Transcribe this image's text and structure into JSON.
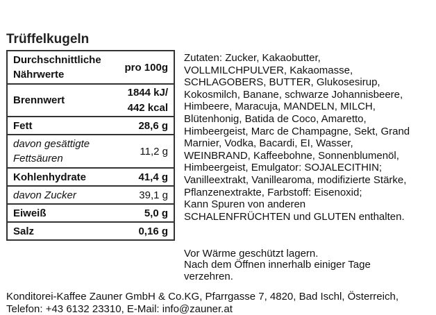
{
  "title": "Trüffelkugeln",
  "nutrition": {
    "header_label": "Durchschnittliche Nährwerte",
    "header_value": "pro 100g",
    "rows": [
      {
        "label": "Brennwert",
        "value": "1844 kJ/ 442 kcal",
        "style": "bold"
      },
      {
        "label": "Fett",
        "value": "28,6 g",
        "style": "bold"
      },
      {
        "label": "davon gesättigte Fettsäuren",
        "value": "11,2 g",
        "style": "italic"
      },
      {
        "label": "Kohlenhydrate",
        "value": "41,4 g",
        "style": "bold"
      },
      {
        "label": "davon Zucker",
        "value": "39,1 g",
        "style": "italic"
      },
      {
        "label": "Eiweiß",
        "value": "5,0 g",
        "style": "bold"
      },
      {
        "label": "Salz",
        "value": "0,16 g",
        "style": "bold"
      }
    ]
  },
  "ingredients": "Zutaten: Zucker, Kakaobutter,\nVOLLMILCHPULVER, Kakaomasse,\nSCHLAGOBERS, BUTTER, Glukosesirup,\nKokosmilch, Banane, schwarze Johannisbeere,\nHimbeere, Maracuja, MANDELN, MILCH,\nBlütenhonig, Batida de Coco, Amaretto,\nHimbeergeist, Marc de Champagne, Sekt, Grand\nMarnier, Vodka, Bacardi, EI, Wasser,\nWEINBRAND, Kaffeebohne, Sonnenblumenöl,\nHimbeergeist, Emulgator: SOJALECITHIN;\nVanilleextrakt, Vanillearoma, modifizierte Stärke,\nPflanzenextrakte, Farbstoff: Eisenoxid;\nKann Spuren von anderen\nSCHALENFRÜCHTEN und GLUTEN enthalten.",
  "storage": "Vor Wärme geschützt lagern.\nNach dem Öffnen innerhalb einiger Tage\nverzehren.",
  "footer": "Konditorei-Kaffee Zauner GmbH & Co.KG, Pfarrgasse 7, 4820, Bad Ischl, Österreich,\nTelefon: +43 6132 23310, E-Mail: info@zauner.at"
}
